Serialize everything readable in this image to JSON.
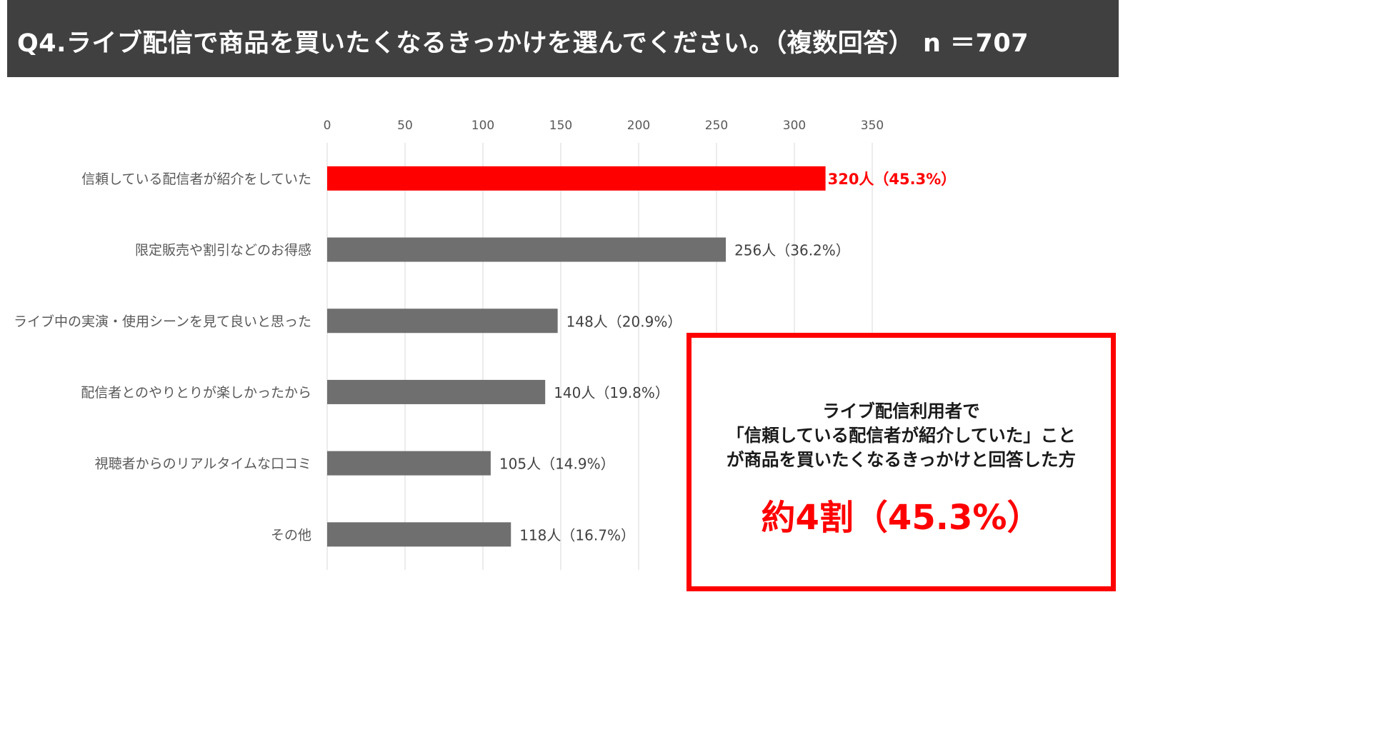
{
  "header": {
    "title": "Q4.ライブ配信で商品を買いたくなるきっかけを選んでください。（複数回答） n ＝707"
  },
  "colors": {
    "highlight": "#ff0000",
    "bar": "#6f6f6f",
    "grid": "#d9d9d9",
    "header_bg": "#404040"
  },
  "chart_data": {
    "type": "bar",
    "orientation": "horizontal",
    "categories": [
      "信頼している配信者が紹介をしていた",
      "限定販売や割引などのお得感",
      "ライブ中の実演・使用シーンを見て良いと思った",
      "配信者とのやりとりが楽しかったから",
      "視聴者からのリアルタイムな口コミ",
      "その他"
    ],
    "values": [
      320,
      256,
      148,
      140,
      105,
      118
    ],
    "data_labels": [
      "320人（45.3%）",
      "256人（36.2%）",
      "148人（20.9%）",
      "140人（19.8%）",
      "105人（14.9%）",
      "118人（16.7%）"
    ],
    "highlight_index": 0,
    "xlim": [
      0,
      350
    ],
    "xticks": [
      0,
      50,
      100,
      150,
      200,
      250,
      300,
      350
    ],
    "axis_position": "top",
    "grid": true
  },
  "callout": {
    "lines": [
      "ライブ配信利用者で",
      "「信頼している配信者が紹介していた」こと",
      "が商品を買いたくなるきっかけと回答した方"
    ],
    "highlight": "約4割（45.3%）"
  }
}
